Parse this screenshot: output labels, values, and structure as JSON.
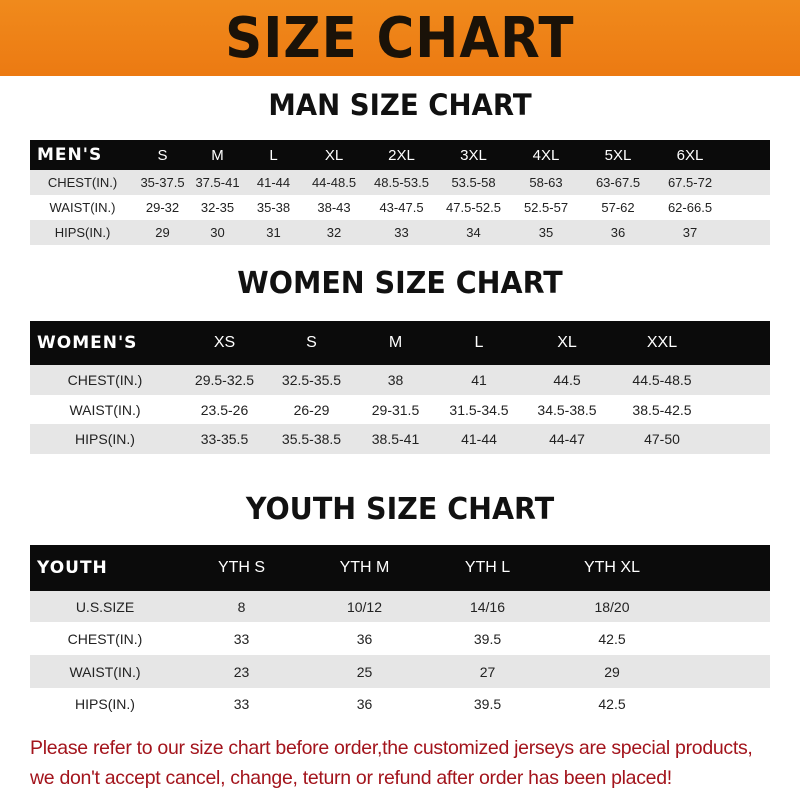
{
  "banner": "SIZE CHART",
  "men": {
    "title": "MAN SIZE CHART",
    "header": [
      "MEN'S",
      "S",
      "M",
      "L",
      "XL",
      "2XL",
      "3XL",
      "4XL",
      "5XL",
      "6XL"
    ],
    "rows": [
      [
        "CHEST(IN.)",
        "35-37.5",
        "37.5-41",
        "41-44",
        "44-48.5",
        "48.5-53.5",
        "53.5-58",
        "58-63",
        "63-67.5",
        "67.5-72"
      ],
      [
        "WAIST(IN.)",
        "29-32",
        "32-35",
        "35-38",
        "38-43",
        "43-47.5",
        "47.5-52.5",
        "52.5-57",
        "57-62",
        "62-66.5"
      ],
      [
        "HIPS(IN.)",
        "29",
        "30",
        "31",
        "32",
        "33",
        "34",
        "35",
        "36",
        "37"
      ]
    ]
  },
  "women": {
    "title": "WOMEN SIZE CHART",
    "header": [
      "WOMEN'S",
      "XS",
      "S",
      "M",
      "L",
      "XL",
      "XXL"
    ],
    "rows": [
      [
        "CHEST(IN.)",
        "29.5-32.5",
        "32.5-35.5",
        "38",
        "41",
        "44.5",
        "44.5-48.5"
      ],
      [
        "WAIST(IN.)",
        "23.5-26",
        "26-29",
        "29-31.5",
        "31.5-34.5",
        "34.5-38.5",
        "38.5-42.5"
      ],
      [
        "HIPS(IN.)",
        "33-35.5",
        "35.5-38.5",
        "38.5-41",
        "41-44",
        "44-47",
        "47-50"
      ]
    ]
  },
  "youth": {
    "title": "YOUTH SIZE CHART",
    "header": [
      "YOUTH",
      "YTH S",
      "YTH M",
      "YTH L",
      "YTH XL"
    ],
    "rows": [
      [
        "U.S.SIZE",
        "8",
        "10/12",
        "14/16",
        "18/20"
      ],
      [
        "CHEST(IN.)",
        "33",
        "36",
        "39.5",
        "42.5"
      ],
      [
        "WAIST(IN.)",
        "23",
        "25",
        "27",
        "29"
      ],
      [
        "HIPS(IN.)",
        "33",
        "36",
        "39.5",
        "42.5"
      ]
    ]
  },
  "notice": [
    "Please refer to our size chart before order,the customized jerseys are special products,",
    "we don't accept cancel, change, teturn or refund after order has been placed!"
  ],
  "colors": {
    "banner": "#ef8318",
    "header_row": "#0b0b0b",
    "stripe": "#e6e6e6",
    "notice": "#a3141c"
  }
}
